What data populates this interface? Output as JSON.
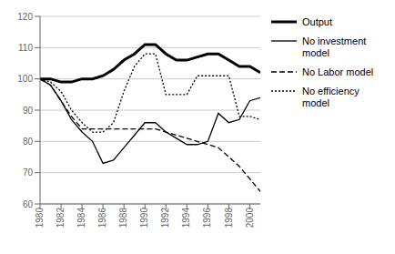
{
  "chart_data": {
    "type": "line",
    "x": [
      1980,
      1981,
      1982,
      1983,
      1984,
      1985,
      1986,
      1987,
      1988,
      1989,
      1990,
      1991,
      1992,
      1993,
      1994,
      1995,
      1996,
      1997,
      1998,
      1999,
      2000,
      2001
    ],
    "series": [
      {
        "name": "Output",
        "color": "#000000",
        "line_style": "solid",
        "values": [
          100,
          100,
          99,
          99,
          100,
          100,
          101,
          103,
          106,
          108,
          111,
          111,
          108,
          106,
          106,
          107,
          108,
          108,
          106,
          104,
          104,
          102
        ]
      },
      {
        "name": "No investment\nmodel",
        "color": "#000000",
        "line_style": "solid",
        "values": [
          100,
          98,
          93,
          87,
          83,
          80,
          73,
          74,
          78,
          82,
          86,
          86,
          83,
          81,
          79,
          79,
          80,
          89,
          86,
          87,
          93,
          94
        ]
      },
      {
        "name": "No Labor model",
        "color": "#000000",
        "line_style": "dashed",
        "values": [
          100,
          98,
          93,
          88,
          84,
          84,
          84,
          84,
          84,
          84,
          84,
          84,
          83,
          82,
          81,
          80,
          79,
          78,
          75,
          72,
          68,
          64
        ]
      },
      {
        "name": "No efficiency\nmodel",
        "color": "#000000",
        "line_style": "dotted",
        "values": [
          100,
          99,
          96,
          90,
          86,
          83,
          83,
          86,
          96,
          104,
          108,
          108,
          95,
          95,
          95,
          101,
          101,
          101,
          101,
          88,
          88,
          87
        ]
      }
    ],
    "xlim": [
      1980,
      2001
    ],
    "xticks": [
      1980,
      1982,
      1984,
      1986,
      1988,
      1990,
      1992,
      1994,
      1996,
      1998,
      2000
    ],
    "ylim": [
      60,
      120
    ],
    "yticks": [
      60,
      70,
      80,
      90,
      100,
      110,
      120
    ],
    "grid": true,
    "legend": "right"
  }
}
